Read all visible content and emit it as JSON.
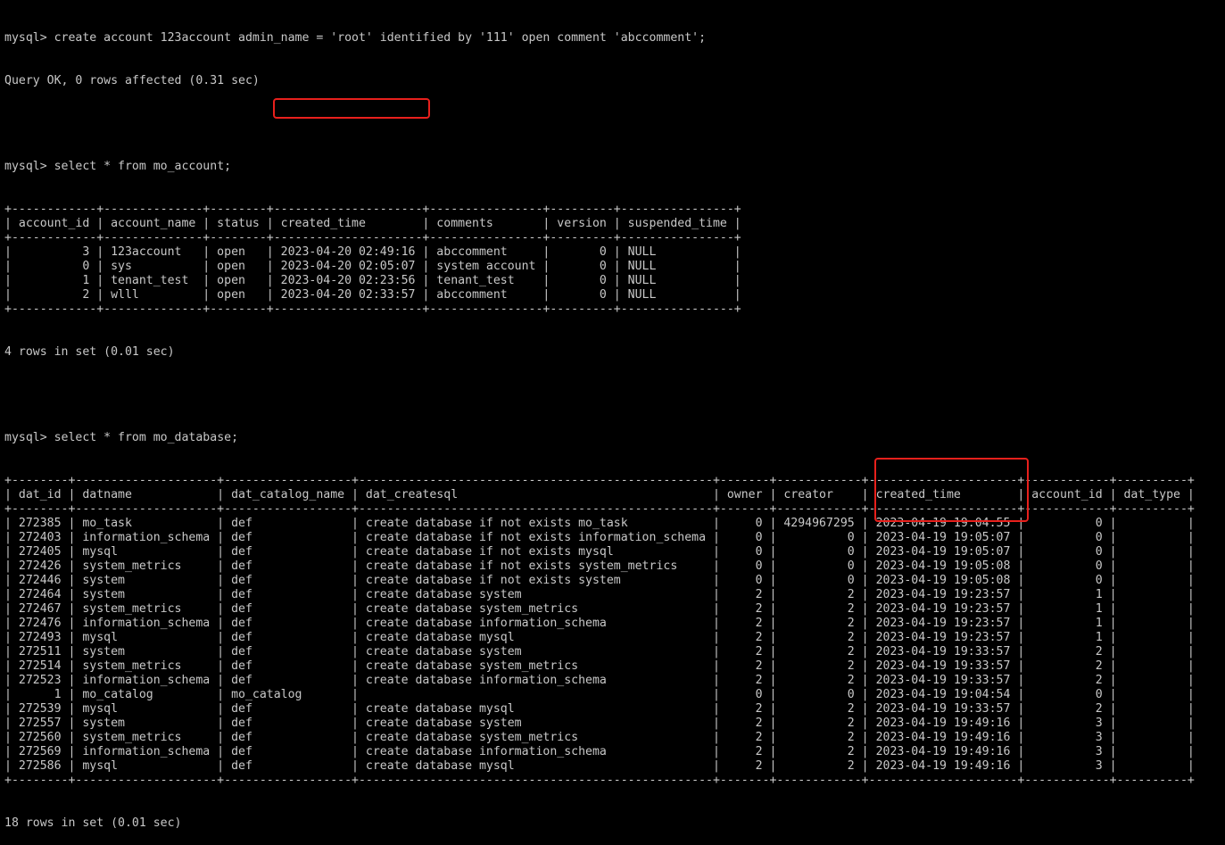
{
  "highlight_color": "#e8201c",
  "text_color": "#c8c8c8",
  "background": "#000000",
  "session": {
    "prompt": "mysql> ",
    "cmd1": "create account 123account admin_name = 'root' identified by '111' open comment 'abccomment';",
    "result1": "Query OK, 0 rows affected (0.31 sec)",
    "cmd2": "select * from mo_account;",
    "result2": "4 rows in set (0.01 sec)",
    "cmd3": "select * from mo_database;",
    "result3": "18 rows in set (0.01 sec)"
  },
  "table1": {
    "columns": [
      "account_id",
      "account_name",
      "status",
      "created_time",
      "comments",
      "version",
      "suspended_time"
    ],
    "right_align": [
      true,
      false,
      false,
      false,
      false,
      true,
      false
    ],
    "rows": [
      [
        "3",
        "123account",
        "open",
        "2023-04-20 02:49:16",
        "abccomment",
        "0",
        "NULL"
      ],
      [
        "0",
        "sys",
        "open",
        "2023-04-20 02:05:07",
        "system account",
        "0",
        "NULL"
      ],
      [
        "1",
        "tenant_test",
        "open",
        "2023-04-20 02:23:56",
        "tenant_test",
        "0",
        "NULL"
      ],
      [
        "2",
        "wlll",
        "open",
        "2023-04-20 02:33:57",
        "abccomment",
        "0",
        "NULL"
      ]
    ]
  },
  "table2": {
    "columns": [
      "dat_id",
      "datname",
      "dat_catalog_name",
      "dat_createsql",
      "owner",
      "creator",
      "created_time",
      "account_id",
      "dat_type"
    ],
    "right_align": [
      true,
      false,
      false,
      false,
      true,
      true,
      false,
      true,
      false
    ],
    "rows": [
      [
        "272385",
        "mo_task",
        "def",
        "create database if not exists mo_task",
        "0",
        "4294967295",
        "2023-04-19 19:04:55",
        "0",
        ""
      ],
      [
        "272403",
        "information_schema",
        "def",
        "create database if not exists information_schema",
        "0",
        "0",
        "2023-04-19 19:05:07",
        "0",
        ""
      ],
      [
        "272405",
        "mysql",
        "def",
        "create database if not exists mysql",
        "0",
        "0",
        "2023-04-19 19:05:07",
        "0",
        ""
      ],
      [
        "272426",
        "system_metrics",
        "def",
        "create database if not exists system_metrics",
        "0",
        "0",
        "2023-04-19 19:05:08",
        "0",
        ""
      ],
      [
        "272446",
        "system",
        "def",
        "create database if not exists system",
        "0",
        "0",
        "2023-04-19 19:05:08",
        "0",
        ""
      ],
      [
        "272464",
        "system",
        "def",
        "create database system",
        "2",
        "2",
        "2023-04-19 19:23:57",
        "1",
        ""
      ],
      [
        "272467",
        "system_metrics",
        "def",
        "create database system_metrics",
        "2",
        "2",
        "2023-04-19 19:23:57",
        "1",
        ""
      ],
      [
        "272476",
        "information_schema",
        "def",
        "create database information_schema",
        "2",
        "2",
        "2023-04-19 19:23:57",
        "1",
        ""
      ],
      [
        "272493",
        "mysql",
        "def",
        "create database mysql",
        "2",
        "2",
        "2023-04-19 19:23:57",
        "1",
        ""
      ],
      [
        "272511",
        "system",
        "def",
        "create database system",
        "2",
        "2",
        "2023-04-19 19:33:57",
        "2",
        ""
      ],
      [
        "272514",
        "system_metrics",
        "def",
        "create database system_metrics",
        "2",
        "2",
        "2023-04-19 19:33:57",
        "2",
        ""
      ],
      [
        "272523",
        "information_schema",
        "def",
        "create database information_schema",
        "2",
        "2",
        "2023-04-19 19:33:57",
        "2",
        ""
      ],
      [
        "1",
        "mo_catalog",
        "mo_catalog",
        "",
        "0",
        "0",
        "2023-04-19 19:04:54",
        "0",
        ""
      ],
      [
        "272539",
        "mysql",
        "def",
        "create database mysql",
        "2",
        "2",
        "2023-04-19 19:33:57",
        "2",
        ""
      ],
      [
        "272557",
        "system",
        "def",
        "create database system",
        "2",
        "2",
        "2023-04-19 19:49:16",
        "3",
        ""
      ],
      [
        "272560",
        "system_metrics",
        "def",
        "create database system_metrics",
        "2",
        "2",
        "2023-04-19 19:49:16",
        "3",
        ""
      ],
      [
        "272569",
        "information_schema",
        "def",
        "create database information_schema",
        "2",
        "2",
        "2023-04-19 19:49:16",
        "3",
        ""
      ],
      [
        "272586",
        "mysql",
        "def",
        "create database mysql",
        "2",
        "2",
        "2023-04-19 19:49:16",
        "3",
        ""
      ]
    ]
  }
}
